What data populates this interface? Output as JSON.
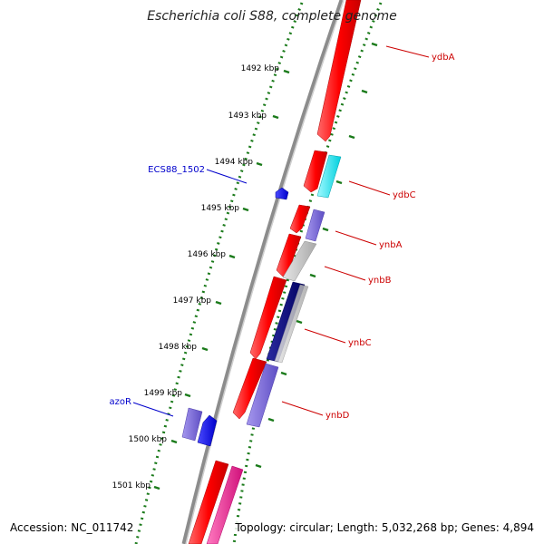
{
  "title": "Escherichia coli S88, complete genome",
  "footer": {
    "accession": "Accession: NC_011742",
    "summary": "Topology: circular; Length: 5,032,268 bp; Genes: 4,894"
  },
  "ruler_labels": [
    "1492 kbp",
    "1493 kbp",
    "1494 kbp",
    "1495 kbp",
    "1496 kbp",
    "1497 kbp",
    "1498 kbp",
    "1499 kbp",
    "1500 kbp",
    "1501 kbp"
  ],
  "gene_labels": {
    "left": [
      "ECS88_1502",
      "azoR"
    ],
    "right": [
      "ydbA",
      "ydbC",
      "ynbA",
      "ynbB",
      "ynbC",
      "ynbD"
    ]
  },
  "colors": {
    "label_left": "#0000cc",
    "label_right": "#cc0000",
    "tick": "#1a7a1a",
    "backbone": "#888888",
    "gene_red": "#ff0000",
    "gene_blue": "#0000ff",
    "gene_cyan": "#00e5ee",
    "gene_purple": "#7b6ad6",
    "gene_navy": "#000080",
    "gene_grey": "#c8c8c8",
    "gene_pink": "#ff1493"
  }
}
